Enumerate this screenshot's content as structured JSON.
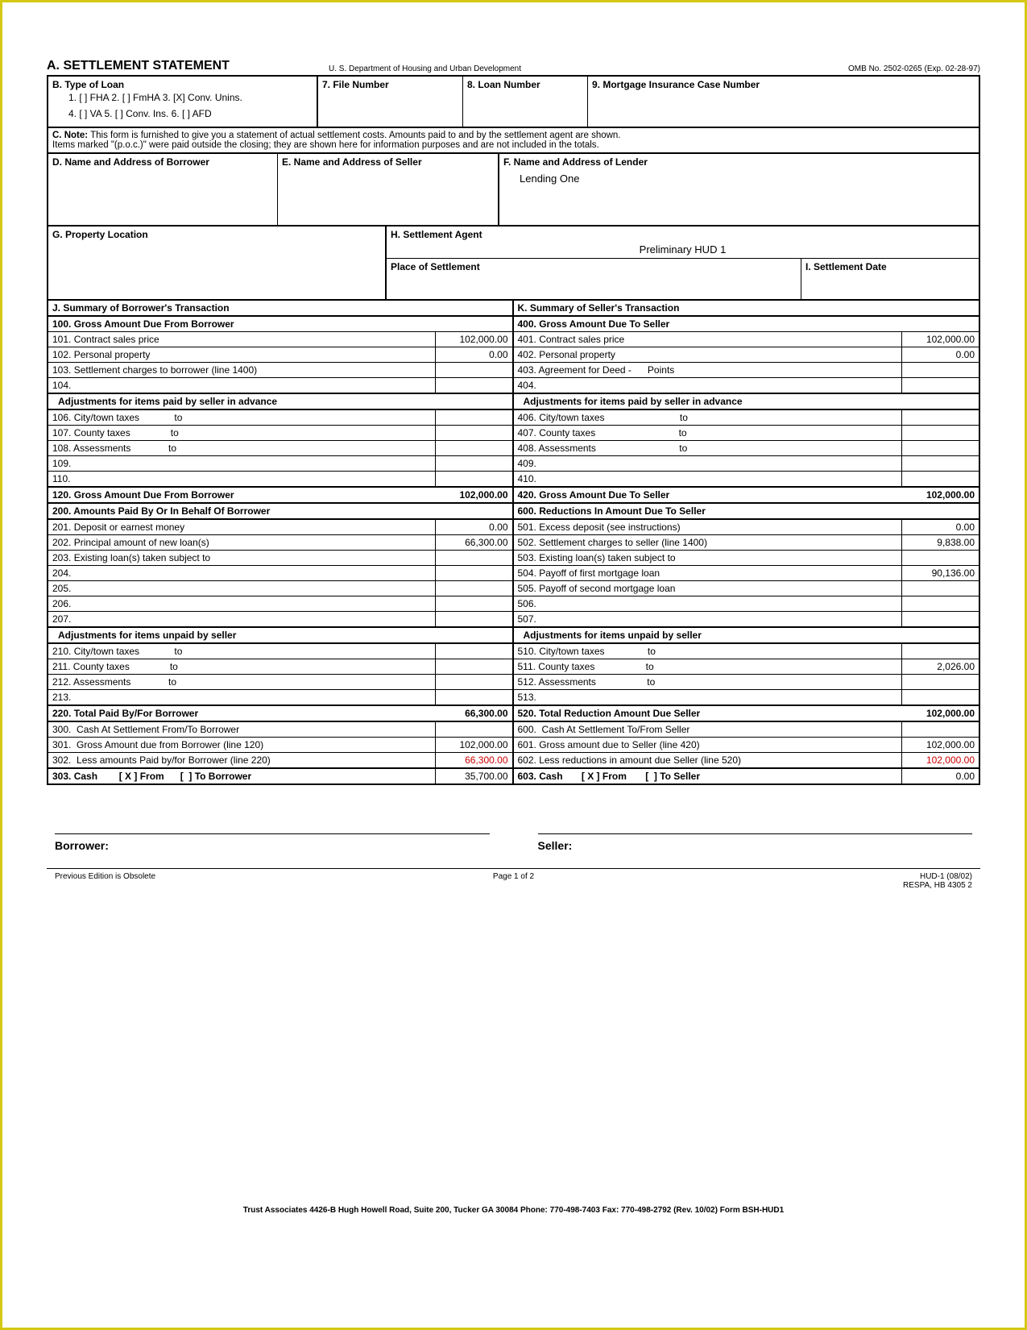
{
  "header": {
    "title": "A. SETTLEMENT STATEMENT",
    "department": "U. S. Department of Housing and Urban Development",
    "omb": "OMB No. 2502-0265 (Exp. 02-28-97)"
  },
  "sectionB": {
    "label": "B. Type of Loan",
    "line1": "1. [ ] FHA   2. [ ] FmHA   3. [X] Conv. Unins.",
    "line2": "4. [ ] VA   5. [ ] Conv. Ins.   6. [ ] AFD"
  },
  "box7": "7. File Number",
  "box8": "8. Loan Number",
  "box9": "9. Mortgage Insurance Case Number",
  "noteC": {
    "label": "C. Note:",
    "text1": "This form is furnished to give you a statement of actual settlement costs.  Amounts paid to and by the settlement agent are shown.",
    "text2": "Items marked \"(p.o.c.)\" were paid outside the closing; they are shown here for information purposes and are not included in the totals."
  },
  "boxD": "D. Name and Address of Borrower",
  "boxE": "E. Name and Address of Seller",
  "boxF": {
    "label": "F. Name and Address of Lender",
    "value": "Lending One"
  },
  "boxG": "G. Property Location",
  "boxH": {
    "label": "H. Settlement Agent",
    "value": "Preliminary HUD 1"
  },
  "boxPlace": "Place of Settlement",
  "boxI": "I. Settlement Date",
  "J": "J. Summary of Borrower's Transaction",
  "K": "K. Summary of Seller's Transaction",
  "h100": "100. Gross Amount Due From Borrower",
  "h400": "400. Gross Amount Due To Seller",
  "r101": {
    "l": "101. Contract sales price",
    "a": "102,000.00"
  },
  "r401": {
    "l": "401. Contract sales price",
    "a": "102,000.00"
  },
  "r102": {
    "l": "102. Personal property",
    "a": "0.00"
  },
  "r402": {
    "l": "402. Personal property",
    "a": "0.00"
  },
  "r103": {
    "l": "103. Settlement charges to borrower (line 1400)",
    "a": ""
  },
  "r403": {
    "l": "403. Agreement for Deed -      Points",
    "a": ""
  },
  "r104": {
    "l": "104.",
    "a": ""
  },
  "r404": {
    "l": "404.",
    "a": ""
  },
  "adjPaid": "Adjustments for items paid by seller in advance",
  "r106": {
    "l": "106. City/town taxes             to",
    "a": ""
  },
  "r406": {
    "l": "406. City/town taxes                            to",
    "a": ""
  },
  "r107": {
    "l": "107. County taxes               to",
    "a": ""
  },
  "r407": {
    "l": "407. County taxes                               to",
    "a": ""
  },
  "r108": {
    "l": "108. Assessments              to",
    "a": ""
  },
  "r408": {
    "l": "408. Assessments                               to",
    "a": ""
  },
  "r109": {
    "l": "109.",
    "a": ""
  },
  "r409": {
    "l": "409.",
    "a": ""
  },
  "r110": {
    "l": "110.",
    "a": ""
  },
  "r410": {
    "l": "410.",
    "a": ""
  },
  "r120": {
    "l": "120. Gross Amount Due From Borrower",
    "a": "102,000.00"
  },
  "r420": {
    "l": "420. Gross Amount Due To Seller",
    "a": "102,000.00"
  },
  "h200": "200. Amounts Paid By Or In Behalf Of Borrower",
  "h600": "600. Reductions In Amount Due To Seller",
  "r201": {
    "l": "201. Deposit or earnest money",
    "a": "0.00"
  },
  "r501": {
    "l": "501. Excess deposit (see instructions)",
    "a": "0.00"
  },
  "r202": {
    "l": "202. Principal amount of new loan(s)",
    "a": "66,300.00"
  },
  "r502": {
    "l": "502. Settlement charges to seller (line 1400)",
    "a": "9,838.00"
  },
  "r203": {
    "l": "203. Existing loan(s) taken subject to",
    "a": ""
  },
  "r503": {
    "l": "503. Existing loan(s) taken subject to",
    "a": ""
  },
  "r204": {
    "l": "204.",
    "a": ""
  },
  "r504": {
    "l": "504. Payoff of first mortgage loan",
    "a": "90,136.00"
  },
  "r205": {
    "l": "205.",
    "a": ""
  },
  "r505": {
    "l": "505. Payoff of second mortgage loan",
    "a": ""
  },
  "r206": {
    "l": "206.",
    "a": ""
  },
  "r506": {
    "l": "506.",
    "a": ""
  },
  "r207": {
    "l": "207.",
    "a": ""
  },
  "r507": {
    "l": "507.",
    "a": ""
  },
  "adjUnpaid": "Adjustments for items unpaid by seller",
  "r210": {
    "l": "210. City/town taxes             to",
    "a": ""
  },
  "r510": {
    "l": "510. City/town taxes                to",
    "a": ""
  },
  "r211": {
    "l": "211. County taxes               to",
    "a": ""
  },
  "r511": {
    "l": "511. County taxes                   to",
    "a": "2,026.00"
  },
  "r212": {
    "l": "212. Assessments              to",
    "a": ""
  },
  "r512": {
    "l": "512. Assessments                   to",
    "a": ""
  },
  "r213": {
    "l": "213.",
    "a": ""
  },
  "r513": {
    "l": "513.",
    "a": ""
  },
  "r220": {
    "l": "220. Total Paid By/For Borrower",
    "a": "66,300.00"
  },
  "r520": {
    "l": "520. Total Reduction Amount Due Seller",
    "a": "102,000.00"
  },
  "r300": {
    "l": "300.  Cash At Settlement From/To Borrower",
    "a": ""
  },
  "r600b": {
    "l": "600.  Cash At Settlement To/From Seller",
    "a": ""
  },
  "r301": {
    "l": "301.  Gross Amount due from Borrower (line 120)",
    "a": "102,000.00"
  },
  "r601": {
    "l": "601. Gross amount due to Seller (line 420)",
    "a": "102,000.00"
  },
  "r302": {
    "l": "302.  Less amounts Paid by/for Borrower (line 220)",
    "a": "66,300.00"
  },
  "r602": {
    "l": "602. Less reductions in amount due Seller (line 520)",
    "a": "102,000.00"
  },
  "r303": {
    "l": "303. Cash        [ X ] From      [  ] To Borrower",
    "a": "35,700.00"
  },
  "r603": {
    "l": "603. Cash       [ X ] From       [  ] To Seller",
    "a": "0.00"
  },
  "sig": {
    "borrower": "Borrower:",
    "seller": "Seller:"
  },
  "footer": {
    "prev": "Previous Edition is Obsolete",
    "page": "Page 1 of 2",
    "hud": "HUD-1 (08/02)",
    "respa": "RESPA, HB 4305 2",
    "trust": "Trust Associates  4426-B Hugh Howell Road, Suite 200, Tucker  GA  30084  Phone: 770-498-7403  Fax: 770-498-2792  (Rev. 10/02) Form BSH-HUD1"
  }
}
